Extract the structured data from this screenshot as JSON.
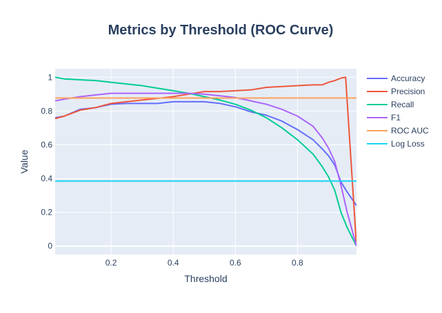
{
  "chart_data": {
    "type": "line",
    "title": "Metrics by Threshold (ROC Curve)",
    "xlabel": "Threshold",
    "ylabel": "Value",
    "xlim": [
      0.02,
      0.99
    ],
    "ylim": [
      -0.05,
      1.05
    ],
    "xticks": [
      0.2,
      0.4,
      0.6,
      0.8
    ],
    "xtick_labels": [
      "0.2",
      "0.4",
      "0.6",
      "0.8"
    ],
    "yticks": [
      0,
      0.2,
      0.4,
      0.6,
      0.8,
      1
    ],
    "ytick_labels": [
      "0",
      "0.2",
      "0.4",
      "0.6",
      "0.8",
      "1"
    ],
    "grid": true,
    "legend_position": "right",
    "background": "#e5ecf6",
    "series": [
      {
        "name": "Accuracy",
        "color": "#636efa",
        "points": [
          [
            0.02,
            0.76
          ],
          [
            0.05,
            0.77
          ],
          [
            0.1,
            0.81
          ],
          [
            0.15,
            0.82
          ],
          [
            0.2,
            0.84
          ],
          [
            0.25,
            0.845
          ],
          [
            0.3,
            0.845
          ],
          [
            0.35,
            0.845
          ],
          [
            0.4,
            0.855
          ],
          [
            0.45,
            0.855
          ],
          [
            0.5,
            0.855
          ],
          [
            0.55,
            0.845
          ],
          [
            0.6,
            0.825
          ],
          [
            0.65,
            0.795
          ],
          [
            0.7,
            0.775
          ],
          [
            0.75,
            0.74
          ],
          [
            0.8,
            0.69
          ],
          [
            0.85,
            0.63
          ],
          [
            0.88,
            0.575
          ],
          [
            0.9,
            0.535
          ],
          [
            0.92,
            0.48
          ],
          [
            0.94,
            0.38
          ],
          [
            0.96,
            0.32
          ],
          [
            0.99,
            0.24
          ]
        ]
      },
      {
        "name": "Precision",
        "color": "#ef553b",
        "points": [
          [
            0.02,
            0.755
          ],
          [
            0.05,
            0.77
          ],
          [
            0.1,
            0.805
          ],
          [
            0.15,
            0.82
          ],
          [
            0.2,
            0.845
          ],
          [
            0.25,
            0.855
          ],
          [
            0.3,
            0.865
          ],
          [
            0.35,
            0.875
          ],
          [
            0.4,
            0.885
          ],
          [
            0.45,
            0.9
          ],
          [
            0.5,
            0.915
          ],
          [
            0.55,
            0.915
          ],
          [
            0.6,
            0.92
          ],
          [
            0.65,
            0.925
          ],
          [
            0.7,
            0.94
          ],
          [
            0.75,
            0.945
          ],
          [
            0.8,
            0.95
          ],
          [
            0.85,
            0.955
          ],
          [
            0.88,
            0.955
          ],
          [
            0.9,
            0.97
          ],
          [
            0.92,
            0.98
          ],
          [
            0.94,
            0.995
          ],
          [
            0.955,
            1.0
          ],
          [
            0.99,
            0.0
          ]
        ]
      },
      {
        "name": "Recall",
        "color": "#00cc96",
        "points": [
          [
            0.02,
            1.0
          ],
          [
            0.05,
            0.99
          ],
          [
            0.1,
            0.985
          ],
          [
            0.15,
            0.98
          ],
          [
            0.2,
            0.97
          ],
          [
            0.25,
            0.96
          ],
          [
            0.3,
            0.95
          ],
          [
            0.35,
            0.935
          ],
          [
            0.4,
            0.92
          ],
          [
            0.45,
            0.905
          ],
          [
            0.5,
            0.885
          ],
          [
            0.55,
            0.865
          ],
          [
            0.6,
            0.84
          ],
          [
            0.65,
            0.805
          ],
          [
            0.7,
            0.76
          ],
          [
            0.75,
            0.7
          ],
          [
            0.8,
            0.63
          ],
          [
            0.85,
            0.545
          ],
          [
            0.88,
            0.47
          ],
          [
            0.9,
            0.41
          ],
          [
            0.92,
            0.33
          ],
          [
            0.94,
            0.2
          ],
          [
            0.96,
            0.11
          ],
          [
            0.99,
            0.0
          ]
        ]
      },
      {
        "name": "F1",
        "color": "#ab63fa",
        "points": [
          [
            0.02,
            0.86
          ],
          [
            0.05,
            0.87
          ],
          [
            0.1,
            0.885
          ],
          [
            0.15,
            0.895
          ],
          [
            0.2,
            0.905
          ],
          [
            0.25,
            0.905
          ],
          [
            0.3,
            0.905
          ],
          [
            0.35,
            0.905
          ],
          [
            0.4,
            0.905
          ],
          [
            0.45,
            0.905
          ],
          [
            0.5,
            0.9
          ],
          [
            0.55,
            0.89
          ],
          [
            0.6,
            0.88
          ],
          [
            0.65,
            0.86
          ],
          [
            0.7,
            0.84
          ],
          [
            0.75,
            0.81
          ],
          [
            0.8,
            0.77
          ],
          [
            0.85,
            0.71
          ],
          [
            0.88,
            0.64
          ],
          [
            0.9,
            0.58
          ],
          [
            0.92,
            0.5
          ],
          [
            0.94,
            0.36
          ],
          [
            0.96,
            0.2
          ],
          [
            0.99,
            0.0
          ]
        ]
      },
      {
        "name": "ROC AUC",
        "color": "#ffa15a",
        "points": [
          [
            0.02,
            0.877
          ],
          [
            0.99,
            0.877
          ]
        ]
      },
      {
        "name": "Log Loss",
        "color": "#19d3f3",
        "points": [
          [
            0.02,
            0.385
          ],
          [
            0.99,
            0.385
          ]
        ]
      }
    ]
  }
}
